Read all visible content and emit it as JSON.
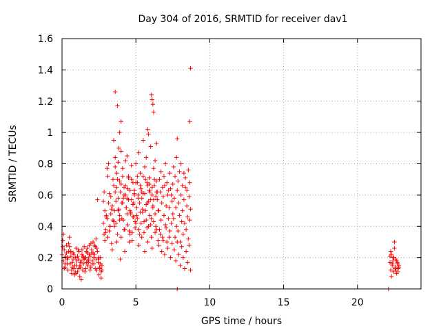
{
  "chart_data": {
    "type": "scatter",
    "title": "Day 304 of 2016, SRMTID for receiver dav1",
    "xlabel": "GPS time / hours",
    "ylabel": "SRMTID / TECUs",
    "xlim": [
      0,
      24.3
    ],
    "ylim": [
      0,
      1.6
    ],
    "xticks": [
      0,
      5,
      10,
      15,
      20
    ],
    "xtick_labels": [
      "0",
      "5",
      "10",
      "15",
      "20"
    ],
    "yticks": [
      0,
      0.2,
      0.4,
      0.6,
      0.8,
      1.0,
      1.2,
      1.4,
      1.6
    ],
    "ytick_labels": [
      "0",
      "0.2",
      "0.4",
      "0.6",
      "0.8",
      "1",
      "1.2",
      "1.4",
      "1.6"
    ],
    "grid": true,
    "legend": "none",
    "marker": "plus",
    "color": "#ff0000",
    "series": [
      {
        "x": [
          0.0,
          0.05,
          0.1,
          0.15,
          0.2,
          0.25,
          0.3,
          0.35,
          0.4,
          0.45,
          0.5,
          0.55,
          0.6,
          0.65,
          0.7,
          0.75,
          0.8,
          0.85,
          0.9,
          0.95,
          1.0,
          1.05,
          1.1,
          1.15,
          1.2,
          1.25,
          1.3,
          1.35,
          1.4,
          1.45,
          1.5,
          1.55,
          1.6,
          1.65,
          1.7,
          1.75,
          1.8,
          1.85,
          1.9,
          1.95,
          2.0,
          2.05,
          2.1,
          2.15,
          2.2,
          2.25,
          2.3,
          2.35,
          2.4,
          2.45,
          2.5,
          2.55,
          2.6,
          2.65,
          2.7,
          0.05,
          0.15,
          0.25,
          0.35,
          0.45,
          0.55,
          0.65,
          0.75,
          0.85,
          0.95,
          1.05,
          1.15,
          1.25,
          1.35,
          1.45,
          1.55,
          1.65,
          1.75,
          1.85,
          1.95,
          2.05,
          2.15,
          2.25,
          2.35,
          2.45,
          2.55,
          2.65,
          0.1,
          0.3,
          0.5,
          0.7,
          0.9,
          1.1,
          1.3,
          1.5,
          1.7,
          1.9,
          2.1,
          2.3,
          2.5,
          2.7,
          0.2,
          0.4,
          0.6,
          0.8,
          1.0,
          1.2,
          1.4,
          1.6,
          1.8,
          2.0,
          2.2,
          2.4,
          2.6,
          2.8,
          2.85,
          2.9,
          2.95,
          3.0,
          3.05,
          3.1,
          3.15,
          3.2,
          3.25,
          3.3,
          3.35,
          3.4,
          3.45,
          3.5,
          2.8,
          2.9,
          3.0,
          3.1,
          3.2,
          3.3,
          3.4,
          3.5,
          2.85,
          2.95,
          3.05,
          3.15,
          3.25,
          3.35,
          3.45,
          3.55,
          3.6,
          3.65,
          3.7,
          3.75,
          3.8,
          3.85,
          3.9,
          3.95,
          4.0,
          4.05,
          4.1,
          4.15,
          4.2,
          4.25,
          4.3,
          4.35,
          4.4,
          4.45,
          4.5,
          4.55,
          4.6,
          4.65,
          4.7,
          4.75,
          4.8,
          4.85,
          4.9,
          4.95,
          5.0,
          3.55,
          3.65,
          3.75,
          3.85,
          3.95,
          4.05,
          4.15,
          4.25,
          4.35,
          4.45,
          4.55,
          4.65,
          4.75,
          4.85,
          4.95,
          3.6,
          3.7,
          3.8,
          3.9,
          4.0,
          4.1,
          4.2,
          4.3,
          4.4,
          4.5,
          4.6,
          4.7,
          4.8,
          4.9,
          5.0,
          3.5,
          3.6,
          3.7,
          3.8,
          3.9,
          4.0,
          4.1,
          4.2,
          4.3,
          4.4,
          4.5,
          4.6,
          4.7,
          4.8,
          4.9,
          5.05,
          5.1,
          5.15,
          5.2,
          5.25,
          5.3,
          5.35,
          5.4,
          5.45,
          5.5,
          5.55,
          5.6,
          5.65,
          5.7,
          5.75,
          5.8,
          5.85,
          5.9,
          5.95,
          6.0,
          6.05,
          6.1,
          6.15,
          6.2,
          6.25,
          6.3,
          6.35,
          6.4,
          6.45,
          6.5,
          5.1,
          5.2,
          5.3,
          5.4,
          5.5,
          5.6,
          5.7,
          5.8,
          5.9,
          6.0,
          6.1,
          6.2,
          6.3,
          6.4,
          6.5,
          5.05,
          5.15,
          5.25,
          5.35,
          5.45,
          5.55,
          5.65,
          5.75,
          5.85,
          5.95,
          6.05,
          6.15,
          6.25,
          6.35,
          6.45,
          5.0,
          5.1,
          5.2,
          5.3,
          5.4,
          5.5,
          5.6,
          5.7,
          5.8,
          5.9,
          6.0,
          6.1,
          6.2,
          6.3,
          6.4,
          6.55,
          6.6,
          6.65,
          6.7,
          6.75,
          6.8,
          6.85,
          6.9,
          6.95,
          7.0,
          7.05,
          7.1,
          7.15,
          7.2,
          7.25,
          7.3,
          7.35,
          7.4,
          7.45,
          7.5,
          6.55,
          6.65,
          6.75,
          6.85,
          6.95,
          7.05,
          7.15,
          7.25,
          7.35,
          7.45,
          6.6,
          6.7,
          6.8,
          6.9,
          7.0,
          7.1,
          7.2,
          7.3,
          7.4,
          7.5,
          7.55,
          7.6,
          7.65,
          7.7,
          7.75,
          7.8,
          7.85,
          7.9,
          7.95,
          8.0,
          8.05,
          8.1,
          8.15,
          8.2,
          8.25,
          8.3,
          8.35,
          8.4,
          8.45,
          8.5,
          8.55,
          8.6,
          8.65,
          8.7,
          7.6,
          7.7,
          7.8,
          7.9,
          8.0,
          8.1,
          8.2,
          8.3,
          8.4,
          8.5,
          8.6,
          8.7,
          7.55,
          7.65,
          7.75,
          7.85,
          7.95,
          8.05,
          8.15,
          8.25,
          8.35,
          8.45,
          8.55,
          8.65,
          3.6,
          3.75,
          4.0,
          6.05,
          6.1,
          6.15,
          6.2,
          8.7,
          8.65,
          5.8,
          5.85,
          6.4,
          3.9,
          7.8,
          22.2,
          22.25,
          22.3,
          22.35,
          22.4,
          22.45,
          22.5,
          22.55,
          22.6,
          22.65,
          22.7,
          22.75,
          22.8,
          22.2,
          22.3,
          22.4,
          22.5,
          22.6,
          22.7,
          22.8,
          22.25,
          22.35,
          22.45,
          22.55,
          22.65,
          22.75,
          7.8,
          22.1
        ],
        "y": [
          0.22,
          0.31,
          0.18,
          0.25,
          0.14,
          0.2,
          0.28,
          0.19,
          0.12,
          0.24,
          0.33,
          0.16,
          0.21,
          0.1,
          0.17,
          0.23,
          0.13,
          0.09,
          0.2,
          0.26,
          0.15,
          0.11,
          0.19,
          0.24,
          0.08,
          0.14,
          0.18,
          0.22,
          0.12,
          0.16,
          0.27,
          0.2,
          0.13,
          0.17,
          0.23,
          0.15,
          0.19,
          0.28,
          0.21,
          0.14,
          0.25,
          0.18,
          0.3,
          0.16,
          0.22,
          0.27,
          0.19,
          0.12,
          0.24,
          0.17,
          0.09,
          0.13,
          0.2,
          0.07,
          0.15,
          0.27,
          0.13,
          0.21,
          0.16,
          0.29,
          0.24,
          0.12,
          0.19,
          0.15,
          0.1,
          0.21,
          0.13,
          0.17,
          0.25,
          0.2,
          0.11,
          0.24,
          0.18,
          0.22,
          0.29,
          0.16,
          0.2,
          0.13,
          0.26,
          0.19,
          0.14,
          0.11,
          0.35,
          0.23,
          0.27,
          0.14,
          0.11,
          0.25,
          0.06,
          0.19,
          0.26,
          0.12,
          0.23,
          0.32,
          0.2,
          0.12,
          0.16,
          0.2,
          0.24,
          0.22,
          0.18,
          0.15,
          0.21,
          0.2,
          0.17,
          0.23,
          0.28,
          0.57,
          0.16,
          0.42,
          0.35,
          0.5,
          0.38,
          0.46,
          0.77,
          0.33,
          0.55,
          0.61,
          0.4,
          0.48,
          0.29,
          0.53,
          0.44,
          0.66,
          0.56,
          0.31,
          0.47,
          0.72,
          0.37,
          0.59,
          0.25,
          0.43,
          0.62,
          0.36,
          0.45,
          0.8,
          0.4,
          0.51,
          0.7,
          0.5,
          0.78,
          0.42,
          0.65,
          0.35,
          0.58,
          0.9,
          0.47,
          0.62,
          0.33,
          0.55,
          0.72,
          0.44,
          0.6,
          0.38,
          0.66,
          0.52,
          0.85,
          0.41,
          0.57,
          0.3,
          0.63,
          0.48,
          0.7,
          0.36,
          0.54,
          0.46,
          0.61,
          0.39,
          0.68,
          0.4,
          0.56,
          0.7,
          0.51,
          0.19,
          0.45,
          0.58,
          0.24,
          0.52,
          0.64,
          0.37,
          0.49,
          0.31,
          0.55,
          0.43,
          0.62,
          0.3,
          0.5,
          0.44,
          0.67,
          0.55,
          0.38,
          0.6,
          0.48,
          0.71,
          0.35,
          0.57,
          0.46,
          0.63,
          0.42,
          0.95,
          0.84,
          0.74,
          0.81,
          0.69,
          0.88,
          0.77,
          0.65,
          0.82,
          0.58,
          0.72,
          0.5,
          0.79,
          0.68,
          0.6,
          0.52,
          0.45,
          0.6,
          0.38,
          0.55,
          0.66,
          0.42,
          0.58,
          0.49,
          0.72,
          0.36,
          0.61,
          0.5,
          0.44,
          0.68,
          0.55,
          0.4,
          0.63,
          0.47,
          0.57,
          0.33,
          0.65,
          0.52,
          0.43,
          0.7,
          0.48,
          0.59,
          0.38,
          0.62,
          0.5,
          0.72,
          0.28,
          0.49,
          0.33,
          0.61,
          0.24,
          0.54,
          0.3,
          0.67,
          0.41,
          0.26,
          0.57,
          0.36,
          0.62,
          0.31,
          0.47,
          0.58,
          0.35,
          0.64,
          0.51,
          0.43,
          0.7,
          0.39,
          0.56,
          0.62,
          0.45,
          0.53,
          0.66,
          0.4,
          0.57,
          0.8,
          0.68,
          0.87,
          0.74,
          0.62,
          0.95,
          0.78,
          0.84,
          0.66,
          0.71,
          0.91,
          0.6,
          0.77,
          0.82,
          0.69,
          0.5,
          0.38,
          0.62,
          0.44,
          0.55,
          0.33,
          0.59,
          0.47,
          0.66,
          0.41,
          0.53,
          0.3,
          0.6,
          0.45,
          0.52,
          0.37,
          0.64,
          0.42,
          0.56,
          0.48,
          0.28,
          0.35,
          0.24,
          0.31,
          0.22,
          0.39,
          0.26,
          0.33,
          0.2,
          0.29,
          0.7,
          0.75,
          0.65,
          0.72,
          0.8,
          0.68,
          0.63,
          0.74,
          0.6,
          0.67,
          0.45,
          0.58,
          0.33,
          0.52,
          0.4,
          0.63,
          0.37,
          0.55,
          0.47,
          0.3,
          0.6,
          0.43,
          0.5,
          0.35,
          0.57,
          0.42,
          0.65,
          0.38,
          0.53,
          0.46,
          0.32,
          0.59,
          0.44,
          0.51,
          0.25,
          0.18,
          0.3,
          0.22,
          0.15,
          0.27,
          0.2,
          0.13,
          0.24,
          0.17,
          0.28,
          0.12,
          0.78,
          0.72,
          0.84,
          0.69,
          0.75,
          0.8,
          0.66,
          0.74,
          0.71,
          0.63,
          0.76,
          0.68,
          1.26,
          1.17,
          1.07,
          1.24,
          1.21,
          1.18,
          1.13,
          1.41,
          1.07,
          1.02,
          0.99,
          0.93,
          1.0,
          0.96,
          0.17,
          0.12,
          0.22,
          0.15,
          0.2,
          0.11,
          0.26,
          0.14,
          0.19,
          0.1,
          0.16,
          0.13,
          0.15,
          0.21,
          0.08,
          0.18,
          0.3,
          0.12,
          0.17,
          0.14,
          0.24,
          0.16,
          0.2,
          0.13,
          0.18,
          0.11,
          0.0,
          0.0
        ]
      }
    ]
  }
}
